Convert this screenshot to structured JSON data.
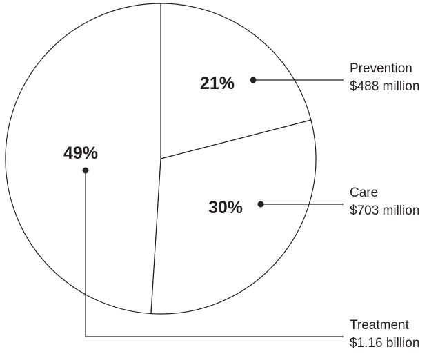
{
  "chart_data": {
    "type": "pie",
    "slices": [
      {
        "percent_label": "21%",
        "category": "Prevention",
        "amount": "$488 million",
        "value": 21
      },
      {
        "percent_label": "30%",
        "category": "Care",
        "amount": "$703 million",
        "value": 30
      },
      {
        "percent_label": "49%",
        "category": "Treatment",
        "amount": "$1.16 billion",
        "value": 49
      }
    ],
    "colors": {
      "fill": "#ffffff",
      "stroke": "#231f20"
    }
  }
}
